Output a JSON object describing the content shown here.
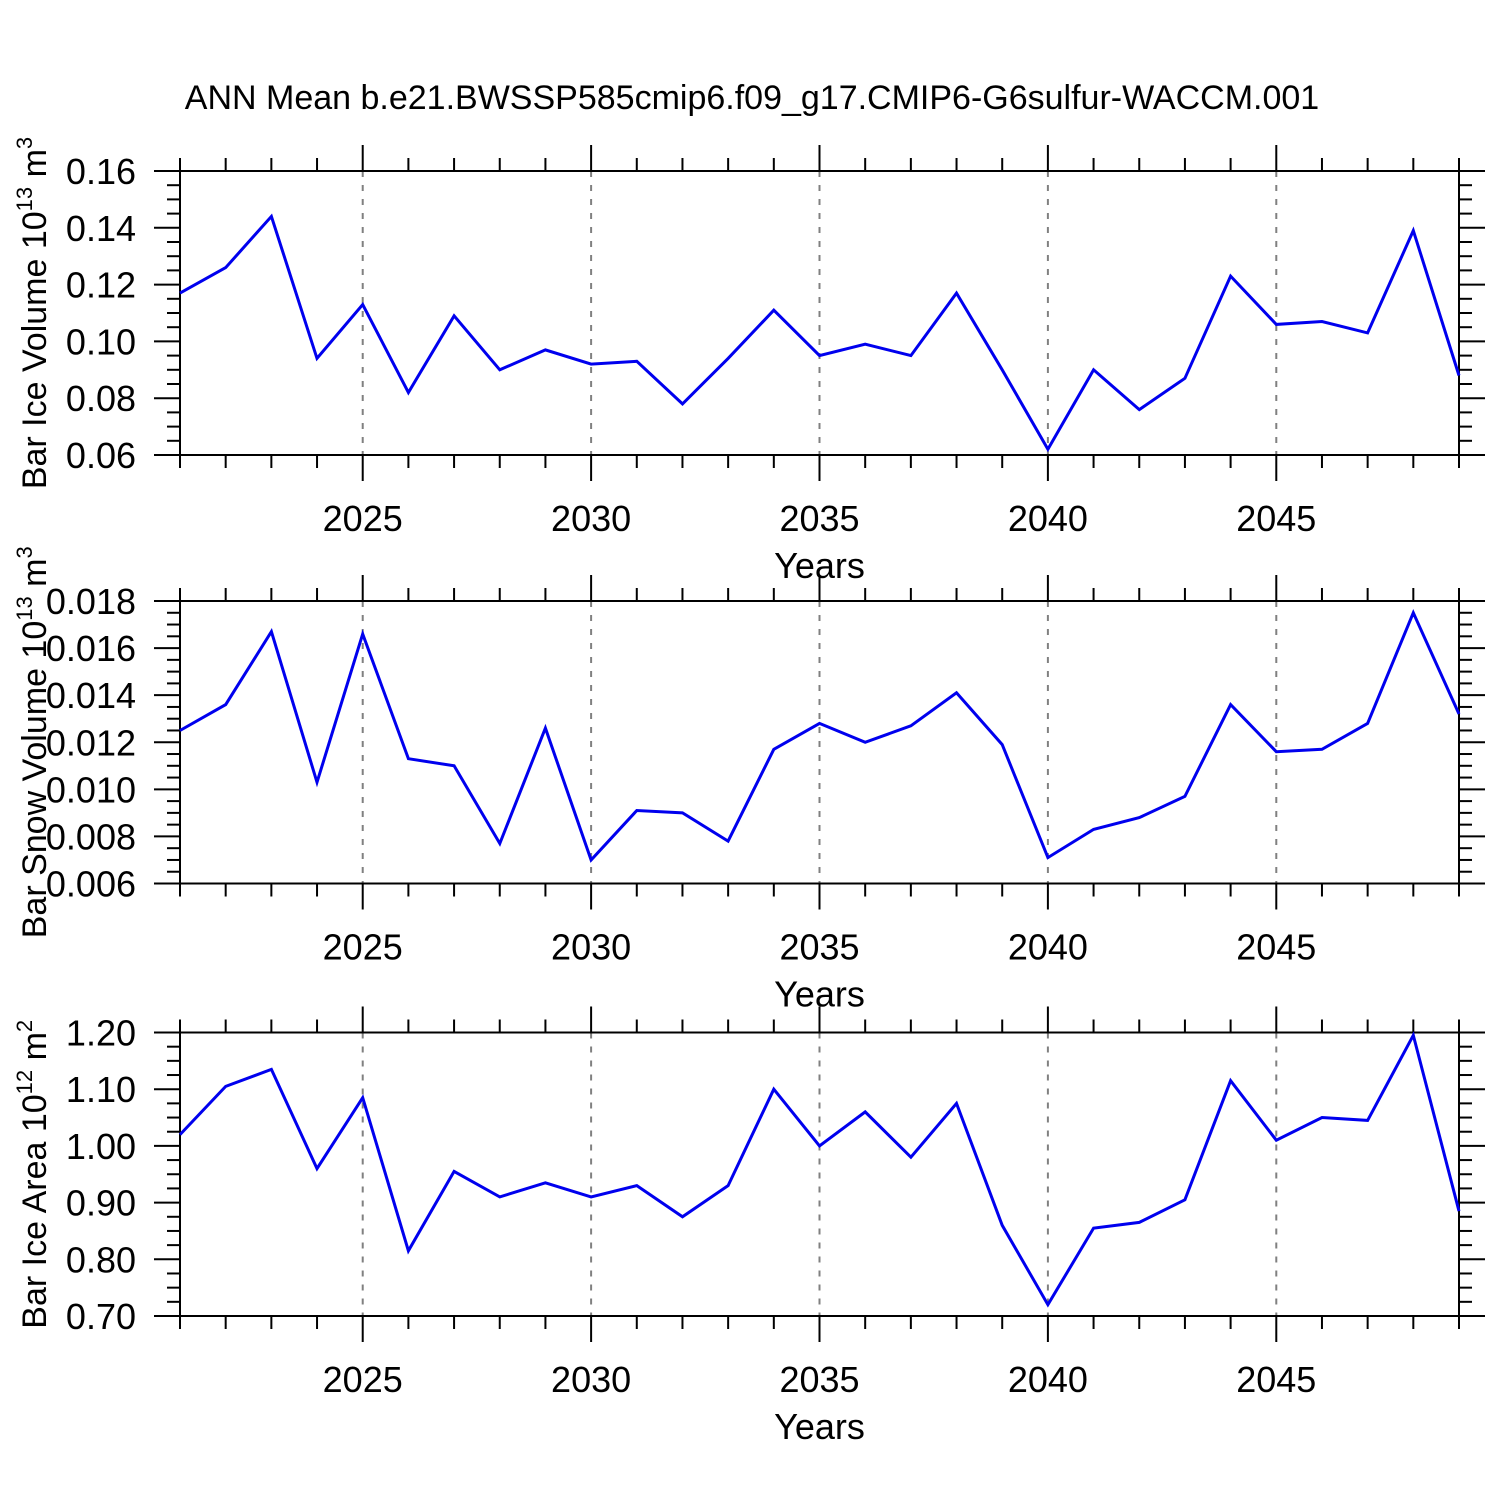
{
  "title": "ANN Mean b.e21.BWSSP585cmip6.f09_g17.CMIP6-G6sulfur-WACCM.001",
  "colors": {
    "line": "#0000EE",
    "axis": "#000000",
    "grid": "#808080",
    "background": "#FFFFFF"
  },
  "x_axis": {
    "label": "Years",
    "range": [
      2021,
      2049
    ],
    "major_ticks": [
      2025,
      2030,
      2035,
      2040,
      2045
    ],
    "major_tick_labels": [
      "2025",
      "2030",
      "2035",
      "2040",
      "2045"
    ],
    "minor_step": 1
  },
  "chart_data": [
    {
      "type": "line",
      "name": "bar-ice-volume",
      "ylabel_text": "Bar Ice Volume 10^13 m^3",
      "ylabel_parts": [
        {
          "t": "Bar Ice Volume 10"
        },
        {
          "s": "13"
        },
        {
          "t": " m"
        },
        {
          "s": "3"
        }
      ],
      "xlabel": "Years",
      "ylim": [
        0.06,
        0.16
      ],
      "ytick_step": 0.02,
      "yminor_step": 0.005,
      "ytick_labels": [
        "0.06",
        "0.08",
        "0.10",
        "0.12",
        "0.14",
        "0.16"
      ],
      "grid": "vertical-dashed",
      "legend": "none",
      "x": [
        2021,
        2022,
        2023,
        2024,
        2025,
        2026,
        2027,
        2028,
        2029,
        2030,
        2031,
        2032,
        2033,
        2034,
        2035,
        2036,
        2037,
        2038,
        2039,
        2040,
        2041,
        2042,
        2043,
        2044,
        2045,
        2046,
        2047,
        2048,
        2049
      ],
      "values": [
        0.117,
        0.126,
        0.144,
        0.094,
        0.113,
        0.082,
        0.109,
        0.09,
        0.097,
        0.092,
        0.093,
        0.078,
        0.094,
        0.111,
        0.095,
        0.099,
        0.095,
        0.117,
        0.09,
        0.062,
        0.09,
        0.076,
        0.087,
        0.123,
        0.106,
        0.107,
        0.103,
        0.139,
        0.088
      ]
    },
    {
      "type": "line",
      "name": "bar-snow-volume",
      "ylabel_text": "Bar Snow Volume 10^13 m^3",
      "ylabel_parts": [
        {
          "t": "Bar Snow Volume 10"
        },
        {
          "s": "13"
        },
        {
          "t": " m"
        },
        {
          "s": "3"
        }
      ],
      "xlabel": "Years",
      "ylim": [
        0.006,
        0.018
      ],
      "ytick_step": 0.002,
      "yminor_step": 0.0005,
      "ytick_labels": [
        "0.006",
        "0.008",
        "0.010",
        "0.012",
        "0.014",
        "0.016",
        "0.018"
      ],
      "grid": "vertical-dashed",
      "legend": "none",
      "x": [
        2021,
        2022,
        2023,
        2024,
        2025,
        2026,
        2027,
        2028,
        2029,
        2030,
        2031,
        2032,
        2033,
        2034,
        2035,
        2036,
        2037,
        2038,
        2039,
        2040,
        2041,
        2042,
        2043,
        2044,
        2045,
        2046,
        2047,
        2048,
        2049
      ],
      "values": [
        0.0125,
        0.0136,
        0.0167,
        0.0103,
        0.0166,
        0.0113,
        0.011,
        0.0077,
        0.0126,
        0.007,
        0.0091,
        0.009,
        0.0078,
        0.0117,
        0.0128,
        0.012,
        0.0127,
        0.0141,
        0.0119,
        0.0071,
        0.0083,
        0.0088,
        0.0097,
        0.0136,
        0.0116,
        0.0117,
        0.0128,
        0.0175,
        0.0132
      ]
    },
    {
      "type": "line",
      "name": "bar-ice-area",
      "ylabel_text": "Bar Ice Area 10^12 m^2",
      "ylabel_parts": [
        {
          "t": "Bar Ice Area 10"
        },
        {
          "s": "12"
        },
        {
          "t": " m"
        },
        {
          "s": "2"
        }
      ],
      "xlabel": "Years",
      "ylim": [
        0.7,
        1.2
      ],
      "ytick_step": 0.1,
      "yminor_step": 0.025,
      "ytick_labels": [
        "0.70",
        "0.80",
        "0.90",
        "1.00",
        "1.10",
        "1.20"
      ],
      "grid": "vertical-dashed",
      "legend": "none",
      "x": [
        2021,
        2022,
        2023,
        2024,
        2025,
        2026,
        2027,
        2028,
        2029,
        2030,
        2031,
        2032,
        2033,
        2034,
        2035,
        2036,
        2037,
        2038,
        2039,
        2040,
        2041,
        2042,
        2043,
        2044,
        2045,
        2046,
        2047,
        2048,
        2049
      ],
      "values": [
        1.02,
        1.105,
        1.135,
        0.96,
        1.085,
        0.815,
        0.955,
        0.91,
        0.935,
        0.91,
        0.93,
        0.875,
        0.93,
        1.1,
        1.0,
        1.06,
        0.98,
        1.075,
        0.86,
        0.72,
        0.855,
        0.865,
        0.905,
        1.115,
        1.01,
        1.05,
        1.045,
        1.195,
        0.885
      ]
    }
  ]
}
